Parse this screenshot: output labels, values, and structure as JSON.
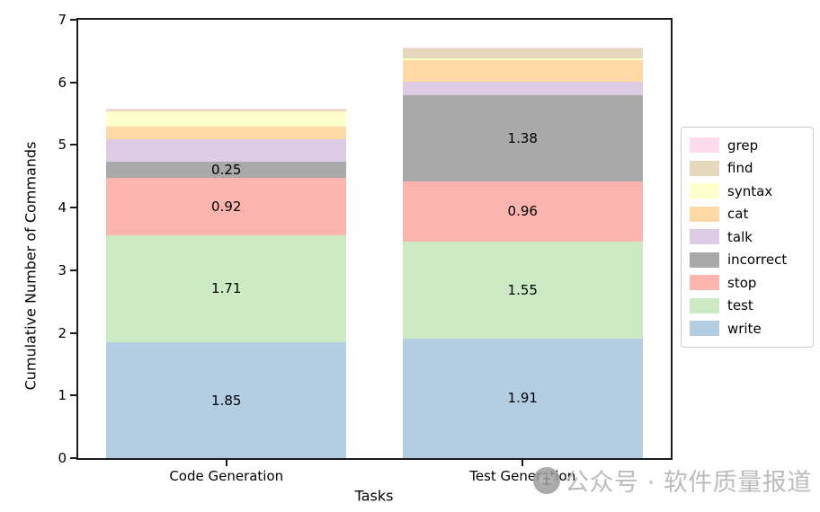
{
  "figure": {
    "background": "#ffffff",
    "axis_color": "#1c1c1c",
    "text_color": "#000000"
  },
  "chart_data": {
    "type": "bar",
    "subtype": "stacked-vertical",
    "title": "",
    "xlabel": "Tasks",
    "ylabel": "Cumulative Number of Commands",
    "categories": [
      "Code Generation",
      "Test Generation"
    ],
    "ylim": [
      0,
      7
    ],
    "yticks": [
      0,
      1,
      2,
      3,
      4,
      5,
      6,
      7
    ],
    "grid": false,
    "legend_position": "center-right-outside",
    "series": [
      {
        "name": "write",
        "color": "#b3cde3",
        "values": [
          1.85,
          1.91
        ],
        "labeled": true
      },
      {
        "name": "test",
        "color": "#ccebc5",
        "values": [
          1.71,
          1.55
        ],
        "labeled": true
      },
      {
        "name": "stop",
        "color": "#fbb4ae",
        "values": [
          0.92,
          0.96
        ],
        "labeled": true
      },
      {
        "name": "incorrect",
        "color": "#a9a9a9",
        "values": [
          0.25,
          1.38
        ],
        "labeled": true
      },
      {
        "name": "talk",
        "color": "#decbe4",
        "values": [
          0.36,
          0.21
        ],
        "labeled": false
      },
      {
        "name": "cat",
        "color": "#fed9a6",
        "values": [
          0.21,
          0.34
        ],
        "labeled": false
      },
      {
        "name": "syntax",
        "color": "#ffffcc",
        "values": [
          0.24,
          0.04
        ],
        "labeled": false
      },
      {
        "name": "find",
        "color": "#e5d8bd",
        "values": [
          0.03,
          0.15
        ],
        "labeled": false
      },
      {
        "name": "grep",
        "color": "#fddaec",
        "values": [
          0.01,
          0.01
        ],
        "labeled": false
      }
    ],
    "visible_value_labels": {
      "Code Generation": {
        "write": "1.85",
        "test": "1.71",
        "stop": "0.92",
        "incorrect": "0.25"
      },
      "Test Generation": {
        "write": "1.91",
        "test": "1.55",
        "stop": "0.96",
        "incorrect": "1.38"
      }
    }
  },
  "legend": {
    "items": [
      "grep",
      "find",
      "syntax",
      "cat",
      "talk",
      "incorrect",
      "stop",
      "test",
      "write"
    ]
  },
  "watermark": {
    "text": "公众号 · 软件质量报道",
    "color": "#bcbcbc"
  }
}
